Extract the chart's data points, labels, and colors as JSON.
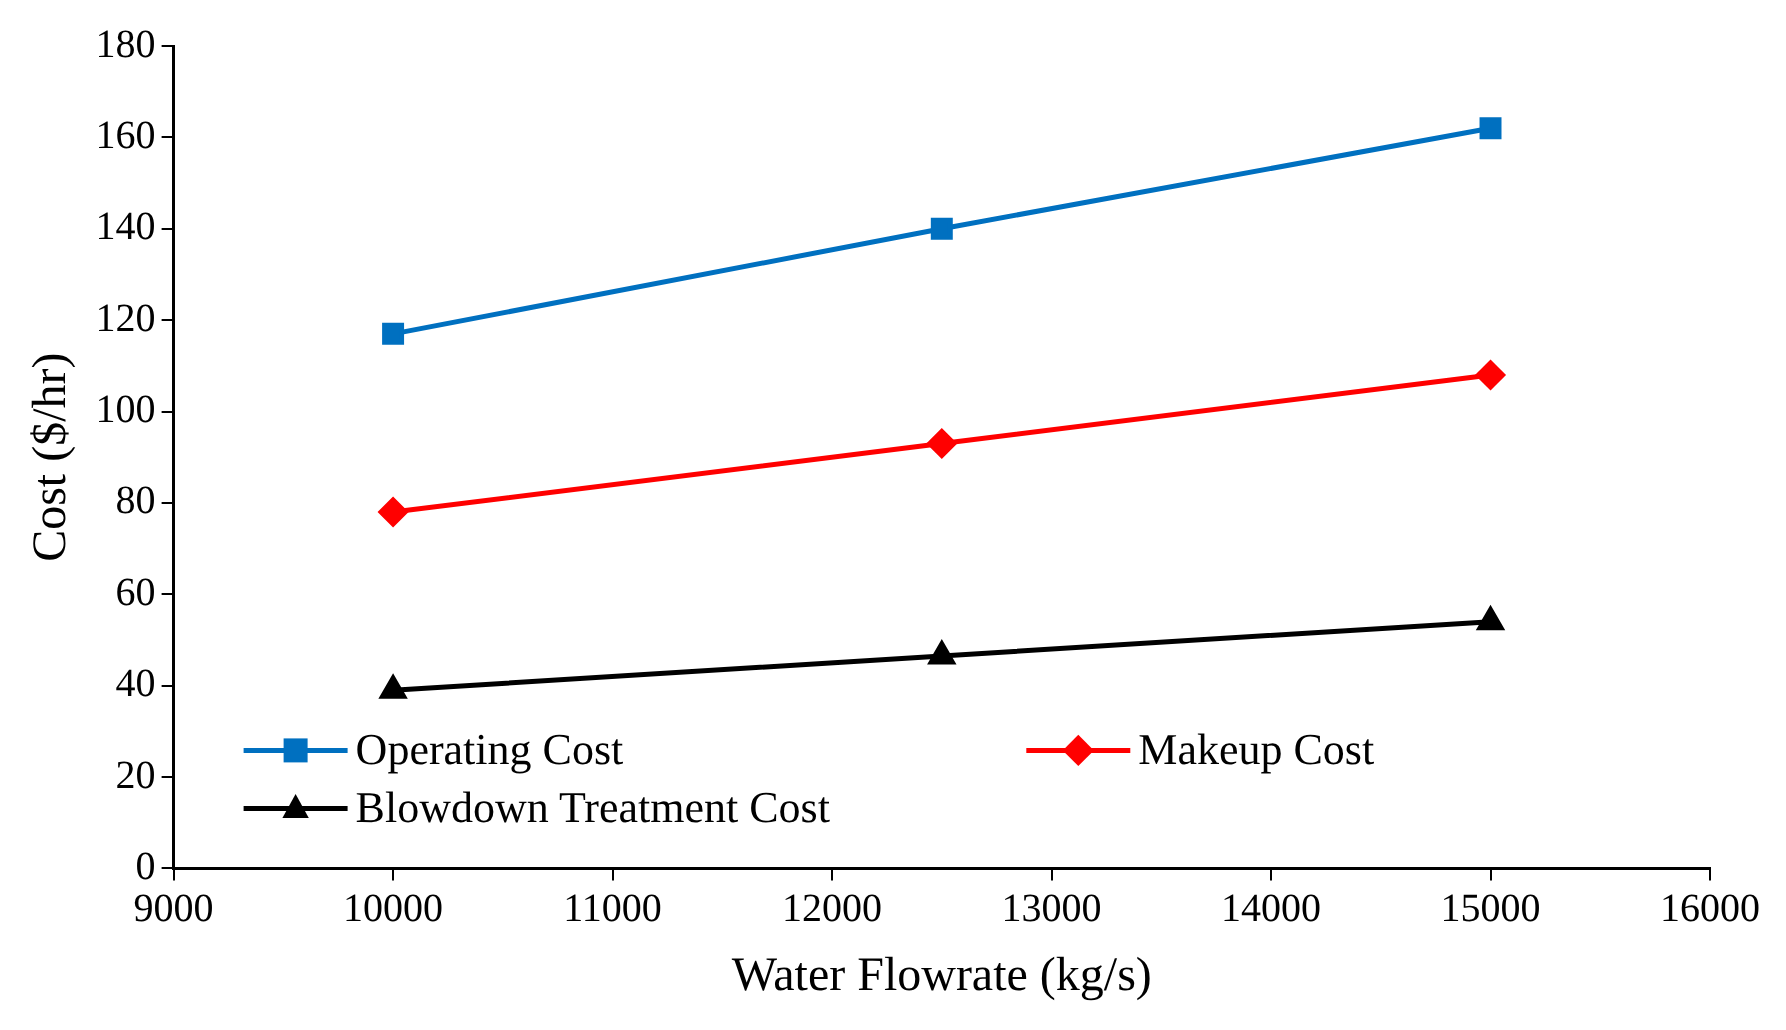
{
  "chart_data": {
    "type": "line",
    "xlabel": "Water Flowrate (kg/s)",
    "ylabel": "Cost ($/hr)",
    "x": [
      10000,
      12500,
      15000
    ],
    "series": [
      {
        "name": "Operating Cost",
        "color": "#0070c0",
        "marker": "square",
        "values": [
          117,
          140,
          162
        ]
      },
      {
        "name": "Makeup Cost",
        "color": "#ff0000",
        "marker": "diamond",
        "values": [
          78,
          93,
          108
        ]
      },
      {
        "name": "Blowdown Treatment Cost",
        "color": "#000000",
        "marker": "triangle",
        "values": [
          39,
          46.5,
          54
        ]
      }
    ],
    "xlim": [
      9000,
      16000
    ],
    "xticks": [
      9000,
      10000,
      11000,
      12000,
      13000,
      14000,
      15000,
      16000
    ],
    "ylim": [
      0,
      180
    ],
    "yticks": [
      0,
      20,
      40,
      60,
      80,
      100,
      120,
      140,
      160,
      180
    ],
    "grid": false,
    "legend": "bottom left",
    "line_style": "solid"
  }
}
